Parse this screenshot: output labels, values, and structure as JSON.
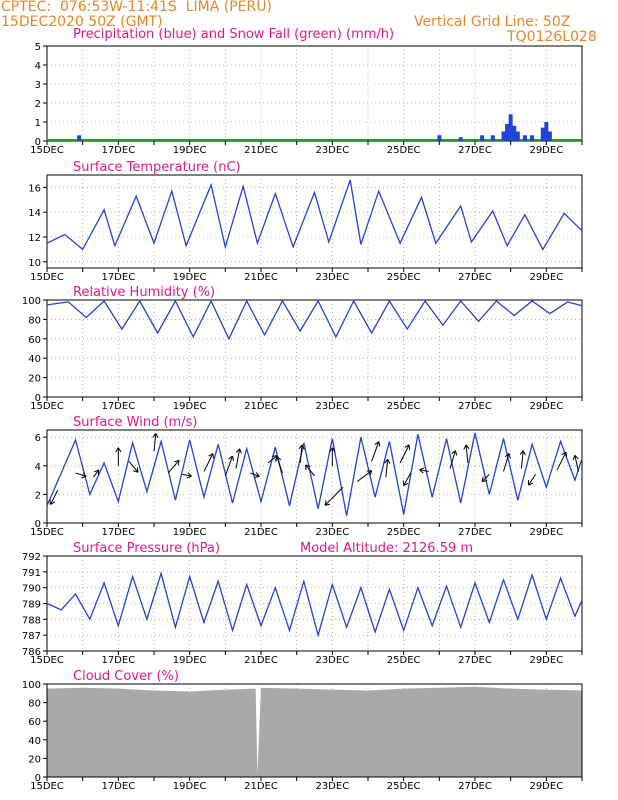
{
  "header": {
    "line1": "CPTEC:  076:53W-11:41S  LIMA (PERU)",
    "line2": "15DEC2020 50Z (GMT)",
    "grid_note": "Vertical Grid Line: 50Z",
    "code": "TQ0126L028"
  },
  "colors": {
    "header": "#e8862a",
    "title": "#e0198a",
    "series": "#2343d6",
    "snow": "#1ea01e",
    "cloud": "#a9a9a9"
  },
  "date_labels": [
    "15DEC",
    "17DEC",
    "19DEC",
    "21DEC",
    "23DEC",
    "25DEC",
    "27DEC",
    "29DEC"
  ],
  "chart_data": [
    {
      "type": "bar",
      "title": "Precipitation (blue) and Snow Fall (green) (mm/h)",
      "ylim": [
        0,
        5
      ],
      "yticks": [
        "0",
        "1",
        "2",
        "3",
        "4",
        "5"
      ],
      "x": [
        "15.9DEC",
        "26.0DEC",
        "26.6DEC",
        "27.2DEC",
        "27.5DEC",
        "27.8DEC",
        "27.9DEC",
        "28.0DEC",
        "28.1DEC",
        "28.2DEC",
        "28.4DEC",
        "28.6DEC",
        "28.9DEC",
        "29.0DEC",
        "29.1DEC"
      ],
      "series": [
        {
          "name": "Precipitation",
          "values": [
            0.3,
            0.3,
            0.2,
            0.3,
            0.3,
            0.5,
            0.9,
            1.4,
            0.8,
            0.5,
            0.3,
            0.3,
            0.7,
            1.0,
            0.5
          ]
        },
        {
          "name": "Snow Fall",
          "values": [
            0,
            0,
            0,
            0,
            0,
            0,
            0,
            0,
            0,
            0,
            0,
            0,
            0,
            0,
            0
          ]
        }
      ]
    },
    {
      "type": "line",
      "title": "Surface Temperature (nC)",
      "ylim": [
        9.5,
        17
      ],
      "yticks": [
        "10",
        "12",
        "14",
        "16"
      ],
      "x": [
        15.0,
        15.5,
        16.0,
        16.6,
        16.9,
        17.5,
        18.0,
        18.5,
        18.9,
        19.6,
        20.0,
        20.5,
        20.9,
        21.4,
        21.9,
        22.5,
        22.9,
        23.5,
        23.8,
        24.3,
        24.9,
        25.5,
        25.9,
        26.6,
        26.9,
        27.5,
        27.9,
        28.4,
        28.9,
        29.5,
        30.0
      ],
      "values": [
        11.5,
        12.2,
        11.0,
        14.2,
        11.3,
        15.3,
        11.5,
        15.7,
        11.3,
        16.2,
        11.2,
        16.1,
        11.5,
        15.5,
        11.2,
        15.6,
        11.6,
        16.6,
        11.4,
        15.7,
        11.5,
        15.2,
        11.5,
        14.5,
        11.6,
        14.1,
        11.3,
        13.8,
        11.0,
        13.9,
        12.5
      ],
      "series_name": "Surface Temperature"
    },
    {
      "type": "line",
      "title": "Relative Humidity (%)",
      "ylim": [
        0,
        100
      ],
      "yticks": [
        "0",
        "20",
        "40",
        "60",
        "80",
        "100"
      ],
      "x": [
        15.0,
        15.6,
        16.1,
        16.6,
        17.1,
        17.6,
        18.1,
        18.6,
        19.1,
        19.6,
        20.1,
        20.6,
        21.1,
        21.6,
        22.1,
        22.6,
        23.1,
        23.6,
        24.1,
        24.6,
        25.1,
        25.6,
        26.1,
        26.6,
        27.1,
        27.6,
        28.1,
        28.6,
        29.1,
        29.6,
        30.0
      ],
      "values": [
        95,
        98,
        82,
        99,
        70,
        99,
        66,
        99,
        62,
        99,
        60,
        99,
        64,
        99,
        68,
        99,
        62,
        99,
        66,
        99,
        70,
        99,
        74,
        99,
        78,
        99,
        84,
        99,
        86,
        98,
        94
      ]
    },
    {
      "type": "line",
      "title": "Surface Wind (m/s)",
      "ylim": [
        0,
        6.5
      ],
      "yticks": [
        "0",
        "2",
        "4",
        "6"
      ],
      "x": [
        15.0,
        15.4,
        15.8,
        16.2,
        16.6,
        17.0,
        17.4,
        17.8,
        18.2,
        18.6,
        19.0,
        19.4,
        19.8,
        20.2,
        20.6,
        21.0,
        21.4,
        21.8,
        22.2,
        22.6,
        23.0,
        23.4,
        23.8,
        24.2,
        24.6,
        25.0,
        25.4,
        25.8,
        26.2,
        26.6,
        27.0,
        27.4,
        27.8,
        28.2,
        28.6,
        29.0,
        29.4,
        29.8,
        30.0
      ],
      "values": [
        1.2,
        3.5,
        5.8,
        2.0,
        4.2,
        1.5,
        5.6,
        2.2,
        5.7,
        1.6,
        5.8,
        1.8,
        5.5,
        1.4,
        5.2,
        1.5,
        5.3,
        1.2,
        5.6,
        1.0,
        5.9,
        0.5,
        6.0,
        1.8,
        5.7,
        0.6,
        6.2,
        1.8,
        5.9,
        1.4,
        6.3,
        2.0,
        5.9,
        1.6,
        5.5,
        2.5,
        5.7,
        3.0,
        4.5
      ]
    },
    {
      "type": "line",
      "title": "Surface Pressure (hPa)",
      "annotation": "Model Altitude: 2126.59  m",
      "ylim": [
        786,
        792
      ],
      "yticks": [
        "786",
        "787",
        "788",
        "789",
        "790",
        "791",
        "792"
      ],
      "x": [
        15.0,
        15.4,
        15.8,
        16.2,
        16.6,
        17.0,
        17.4,
        17.8,
        18.2,
        18.6,
        19.0,
        19.4,
        19.8,
        20.2,
        20.6,
        21.0,
        21.4,
        21.8,
        22.2,
        22.6,
        23.0,
        23.4,
        23.8,
        24.2,
        24.6,
        25.0,
        25.4,
        25.8,
        26.2,
        26.6,
        27.0,
        27.4,
        27.8,
        28.2,
        28.6,
        29.0,
        29.4,
        29.8,
        30.0
      ],
      "values": [
        789.0,
        788.6,
        789.6,
        788.0,
        790.3,
        787.6,
        790.7,
        788.0,
        790.9,
        787.5,
        790.7,
        787.8,
        790.4,
        787.3,
        790.2,
        787.6,
        790.0,
        787.3,
        790.4,
        787.0,
        790.2,
        787.5,
        790.0,
        787.2,
        789.9,
        787.3,
        790.0,
        787.6,
        790.1,
        787.5,
        790.3,
        787.8,
        790.5,
        788.0,
        790.8,
        788.0,
        790.6,
        788.2,
        789.2
      ]
    },
    {
      "type": "area",
      "title": "Cloud Cover (%)",
      "ylim": [
        0,
        100
      ],
      "yticks": [
        "0",
        "20",
        "40",
        "60",
        "80",
        "100"
      ],
      "x": [
        15.0,
        16.0,
        17.0,
        18.0,
        19.0,
        20.0,
        20.85,
        20.9,
        21.0,
        22.0,
        23.0,
        24.0,
        25.0,
        26.0,
        27.0,
        28.0,
        29.0,
        30.0
      ],
      "values": [
        95,
        96,
        95,
        93,
        92,
        94,
        95,
        3,
        96,
        95,
        94,
        93,
        95,
        96,
        97,
        95,
        94,
        93
      ]
    }
  ]
}
